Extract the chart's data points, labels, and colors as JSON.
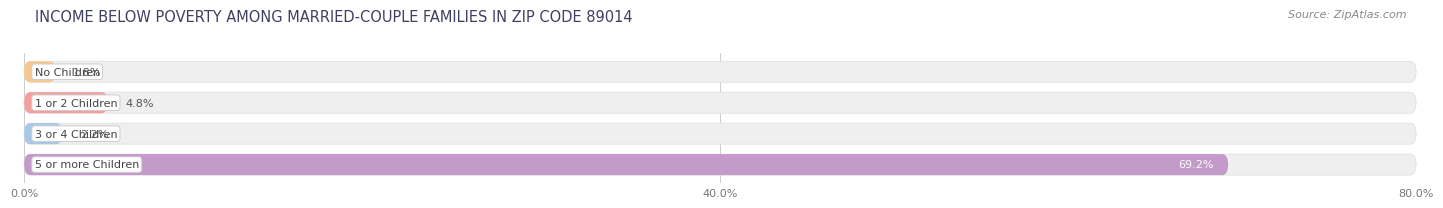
{
  "title": "INCOME BELOW POVERTY AMONG MARRIED-COUPLE FAMILIES IN ZIP CODE 89014",
  "source": "Source: ZipAtlas.com",
  "categories": [
    "No Children",
    "1 or 2 Children",
    "3 or 4 Children",
    "5 or more Children"
  ],
  "values": [
    1.8,
    4.8,
    2.2,
    69.2
  ],
  "bar_colors": [
    "#f5c890",
    "#f4a0a0",
    "#a8c8e8",
    "#c49aca"
  ],
  "bar_bg_color": "#efefef",
  "xlim": [
    0,
    80
  ],
  "xtick_labels": [
    "0.0%",
    "40.0%",
    "80.0%"
  ],
  "xtick_values": [
    0.0,
    40.0,
    80.0
  ],
  "title_fontsize": 10.5,
  "source_fontsize": 8,
  "tick_fontsize": 8,
  "bar_label_fontsize": 8,
  "value_fontsize": 8,
  "fig_bg_color": "#ffffff",
  "axes_bg_color": "#ffffff",
  "bar_height": 0.68,
  "bar_gap": 1.0
}
